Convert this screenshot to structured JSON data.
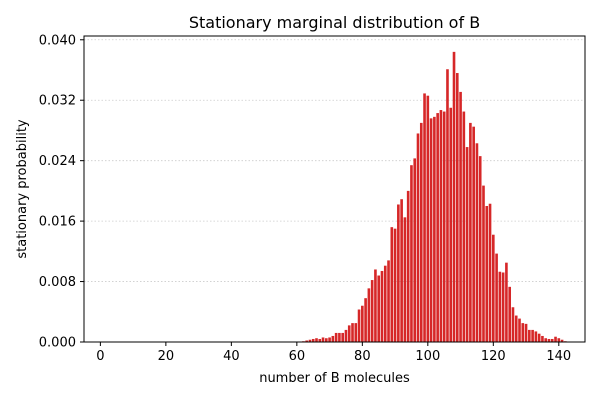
{
  "chart_data": {
    "type": "bar",
    "title": "Stationary marginal distribution of B",
    "xlabel": "number of B molecules",
    "ylabel": "stationary probability",
    "xlim": [
      -5,
      148
    ],
    "ylim": [
      0,
      0.0405
    ],
    "xticks": [
      0,
      20,
      40,
      60,
      80,
      100,
      120,
      140
    ],
    "xtick_labels": [
      "0",
      "20",
      "40",
      "60",
      "80",
      "100",
      "120",
      "140"
    ],
    "yticks": [
      0.0,
      0.008,
      0.016,
      0.024,
      0.032,
      0.04
    ],
    "ytick_labels": [
      "0.000",
      "0.008",
      "0.016",
      "0.024",
      "0.032",
      "0.040"
    ],
    "y_grid": true,
    "grid_style": "dotted",
    "bar_color": "#d62728",
    "x": [
      62,
      63,
      64,
      65,
      66,
      67,
      68,
      69,
      70,
      71,
      72,
      73,
      74,
      75,
      76,
      77,
      78,
      79,
      80,
      81,
      82,
      83,
      84,
      85,
      86,
      87,
      88,
      89,
      90,
      91,
      92,
      93,
      94,
      95,
      96,
      97,
      98,
      99,
      100,
      101,
      102,
      103,
      104,
      105,
      106,
      107,
      108,
      109,
      110,
      111,
      112,
      113,
      114,
      115,
      116,
      117,
      118,
      119,
      120,
      121,
      122,
      123,
      124,
      125,
      126,
      127,
      128,
      129,
      130,
      131,
      132,
      133,
      134,
      135,
      136,
      137,
      138,
      139,
      140,
      141,
      142
    ],
    "values": [
      0.0001,
      0.0002,
      0.0003,
      0.0004,
      0.0005,
      0.0004,
      0.0006,
      0.0005,
      0.0006,
      0.0008,
      0.0012,
      0.0012,
      0.0012,
      0.0016,
      0.0022,
      0.0025,
      0.0025,
      0.0043,
      0.0048,
      0.0058,
      0.0071,
      0.0082,
      0.0096,
      0.0088,
      0.0094,
      0.0101,
      0.0108,
      0.0152,
      0.015,
      0.0182,
      0.0189,
      0.0165,
      0.02,
      0.0234,
      0.0243,
      0.0276,
      0.029,
      0.0329,
      0.0326,
      0.0296,
      0.0298,
      0.0303,
      0.0307,
      0.0305,
      0.0361,
      0.031,
      0.0384,
      0.0356,
      0.0331,
      0.0305,
      0.0258,
      0.029,
      0.0285,
      0.0263,
      0.0246,
      0.0207,
      0.018,
      0.0183,
      0.0142,
      0.0117,
      0.0093,
      0.0092,
      0.0105,
      0.0073,
      0.0046,
      0.0035,
      0.0031,
      0.0025,
      0.0024,
      0.0016,
      0.0016,
      0.0014,
      0.0011,
      0.0008,
      0.0005,
      0.0004,
      0.0004,
      0.0007,
      0.0005,
      0.0003,
      0.0001
    ]
  }
}
